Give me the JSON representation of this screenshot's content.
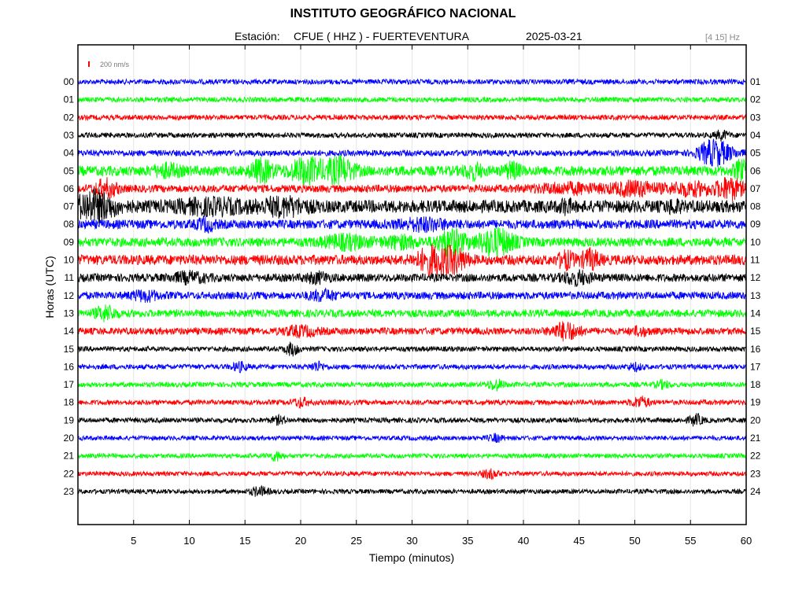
{
  "header": {
    "title": "INSTITUTO GEOGRÁFICO NACIONAL",
    "station_label": "Estación:",
    "station": "CFUE ( HHZ ) - FUERTEVENTURA",
    "date": "2025-03-21",
    "filter": "[4 15] Hz"
  },
  "scale": {
    "label": "200 nm/s",
    "color": "#ff0000"
  },
  "chart_data": {
    "type": "line",
    "title": "INSTITUTO GEOGRÁFICO NACIONAL",
    "xlabel": "Tiempo (minutos)",
    "ylabel": "Horas (UTC)",
    "xlim": [
      0,
      60
    ],
    "x_ticks": [
      "5",
      "10",
      "15",
      "20",
      "25",
      "30",
      "35",
      "40",
      "45",
      "50",
      "55",
      "60"
    ],
    "x_tick_values": [
      5,
      10,
      15,
      20,
      25,
      30,
      35,
      40,
      45,
      50,
      55,
      60
    ],
    "grid": true,
    "trace_colors": [
      "#0000ff",
      "#00ff00",
      "#ff0000",
      "#000000"
    ],
    "hours": [
      {
        "left": "00",
        "right": "01",
        "color": "#0000ff",
        "amp": 1.0,
        "events": []
      },
      {
        "left": "01",
        "right": "02",
        "color": "#00ff00",
        "amp": 1.0,
        "events": []
      },
      {
        "left": "02",
        "right": "03",
        "color": "#ff0000",
        "amp": 1.0,
        "events": []
      },
      {
        "left": "03",
        "right": "04",
        "color": "#000000",
        "amp": 1.0,
        "events": [
          {
            "t": 57.8,
            "a": 5,
            "w": 0.6
          }
        ]
      },
      {
        "left": "04",
        "right": "05",
        "color": "#0000ff",
        "amp": 1.2,
        "events": [
          {
            "t": 57.5,
            "a": 12,
            "w": 1.4
          },
          {
            "t": 56.5,
            "a": 6,
            "w": 1.0
          }
        ]
      },
      {
        "left": "05",
        "right": "06",
        "color": "#00ff00",
        "amp": 2.0,
        "events": [
          {
            "t": 8,
            "a": 6,
            "w": 1.2
          },
          {
            "t": 16.5,
            "a": 12,
            "w": 1.0
          },
          {
            "t": 20.5,
            "a": 14,
            "w": 1.5
          },
          {
            "t": 23.5,
            "a": 14,
            "w": 1.3
          },
          {
            "t": 35.5,
            "a": 8,
            "w": 0.8
          },
          {
            "t": 39,
            "a": 8,
            "w": 0.7
          },
          {
            "t": 59.5,
            "a": 10,
            "w": 0.6
          }
        ]
      },
      {
        "left": "06",
        "right": "07",
        "color": "#ff0000",
        "amp": 1.5,
        "events": [
          {
            "t": 2.5,
            "a": 10,
            "w": 1.0
          },
          {
            "t": 44,
            "a": 5,
            "w": 3.0
          },
          {
            "t": 50,
            "a": 8,
            "w": 2.0
          },
          {
            "t": 55,
            "a": 7,
            "w": 2.0
          },
          {
            "t": 58.5,
            "a": 12,
            "w": 1.2
          }
        ]
      },
      {
        "left": "07",
        "right": "08",
        "color": "#000000",
        "amp": 2.5,
        "events": [
          {
            "t": 1.5,
            "a": 16,
            "w": 1.8
          },
          {
            "t": 12,
            "a": 6,
            "w": 3.0
          },
          {
            "t": 18.5,
            "a": 8,
            "w": 2.0
          },
          {
            "t": 43.8,
            "a": 6,
            "w": 0.5
          },
          {
            "t": 53.5,
            "a": 5,
            "w": 0.6
          }
        ]
      },
      {
        "left": "08",
        "right": "09",
        "color": "#0000ff",
        "amp": 1.8,
        "events": [
          {
            "t": 11.5,
            "a": 6,
            "w": 0.8
          },
          {
            "t": 31,
            "a": 6,
            "w": 2.0
          }
        ]
      },
      {
        "left": "09",
        "right": "10",
        "color": "#00ff00",
        "amp": 1.8,
        "events": [
          {
            "t": 24,
            "a": 7,
            "w": 2.0
          },
          {
            "t": 29,
            "a": 6,
            "w": 1.5
          },
          {
            "t": 33.5,
            "a": 15,
            "w": 1.2
          },
          {
            "t": 37.5,
            "a": 16,
            "w": 1.6
          }
        ]
      },
      {
        "left": "10",
        "right": "11",
        "color": "#ff0000",
        "amp": 2.0,
        "events": [
          {
            "t": 32,
            "a": 16,
            "w": 1.5
          },
          {
            "t": 34,
            "a": 10,
            "w": 1.0
          },
          {
            "t": 43.8,
            "a": 9,
            "w": 0.7
          },
          {
            "t": 46,
            "a": 10,
            "w": 0.8
          }
        ]
      },
      {
        "left": "11",
        "right": "12",
        "color": "#000000",
        "amp": 1.6,
        "events": [
          {
            "t": 10,
            "a": 5,
            "w": 1.5
          },
          {
            "t": 21.5,
            "a": 5,
            "w": 1.0
          },
          {
            "t": 44.8,
            "a": 7,
            "w": 1.2
          }
        ]
      },
      {
        "left": "12",
        "right": "13",
        "color": "#0000ff",
        "amp": 1.5,
        "events": [
          {
            "t": 6,
            "a": 5,
            "w": 1.2
          },
          {
            "t": 22,
            "a": 5,
            "w": 1.2
          }
        ]
      },
      {
        "left": "13",
        "right": "14",
        "color": "#00ff00",
        "amp": 1.5,
        "events": [
          {
            "t": 2.5,
            "a": 8,
            "w": 0.9
          }
        ]
      },
      {
        "left": "14",
        "right": "15",
        "color": "#ff0000",
        "amp": 1.4,
        "events": [
          {
            "t": 20,
            "a": 5,
            "w": 1.5
          },
          {
            "t": 43.8,
            "a": 10,
            "w": 1.2
          },
          {
            "t": 50.5,
            "a": 4,
            "w": 0.8
          }
        ]
      },
      {
        "left": "15",
        "right": "16",
        "color": "#000000",
        "amp": 1.0,
        "events": [
          {
            "t": 19.2,
            "a": 7,
            "w": 0.6
          }
        ]
      },
      {
        "left": "16",
        "right": "17",
        "color": "#0000ff",
        "amp": 1.0,
        "events": [
          {
            "t": 14.5,
            "a": 5,
            "w": 0.6
          },
          {
            "t": 21.5,
            "a": 5,
            "w": 0.6
          },
          {
            "t": 50,
            "a": 4,
            "w": 0.6
          }
        ]
      },
      {
        "left": "17",
        "right": "18",
        "color": "#00ff00",
        "amp": 1.0,
        "events": [
          {
            "t": 37.5,
            "a": 6,
            "w": 0.7
          },
          {
            "t": 52.5,
            "a": 4,
            "w": 0.6
          }
        ]
      },
      {
        "left": "18",
        "right": "19",
        "color": "#ff0000",
        "amp": 1.0,
        "events": [
          {
            "t": 20,
            "a": 5,
            "w": 0.7
          },
          {
            "t": 50.5,
            "a": 6,
            "w": 0.8
          }
        ]
      },
      {
        "left": "19",
        "right": "20",
        "color": "#000000",
        "amp": 1.0,
        "events": [
          {
            "t": 18,
            "a": 4,
            "w": 0.6
          },
          {
            "t": 55.5,
            "a": 6,
            "w": 0.6
          }
        ]
      },
      {
        "left": "20",
        "right": "21",
        "color": "#0000ff",
        "amp": 0.9,
        "events": [
          {
            "t": 37.5,
            "a": 4,
            "w": 0.6
          }
        ]
      },
      {
        "left": "21",
        "right": "22",
        "color": "#00ff00",
        "amp": 0.9,
        "events": [
          {
            "t": 17.8,
            "a": 5,
            "w": 0.6
          }
        ]
      },
      {
        "left": "22",
        "right": "23",
        "color": "#ff0000",
        "amp": 0.9,
        "events": [
          {
            "t": 37,
            "a": 5,
            "w": 0.7
          }
        ]
      },
      {
        "left": "23",
        "right": "24",
        "color": "#000000",
        "amp": 0.9,
        "events": [
          {
            "t": 16.3,
            "a": 5,
            "w": 0.8
          }
        ]
      }
    ]
  }
}
